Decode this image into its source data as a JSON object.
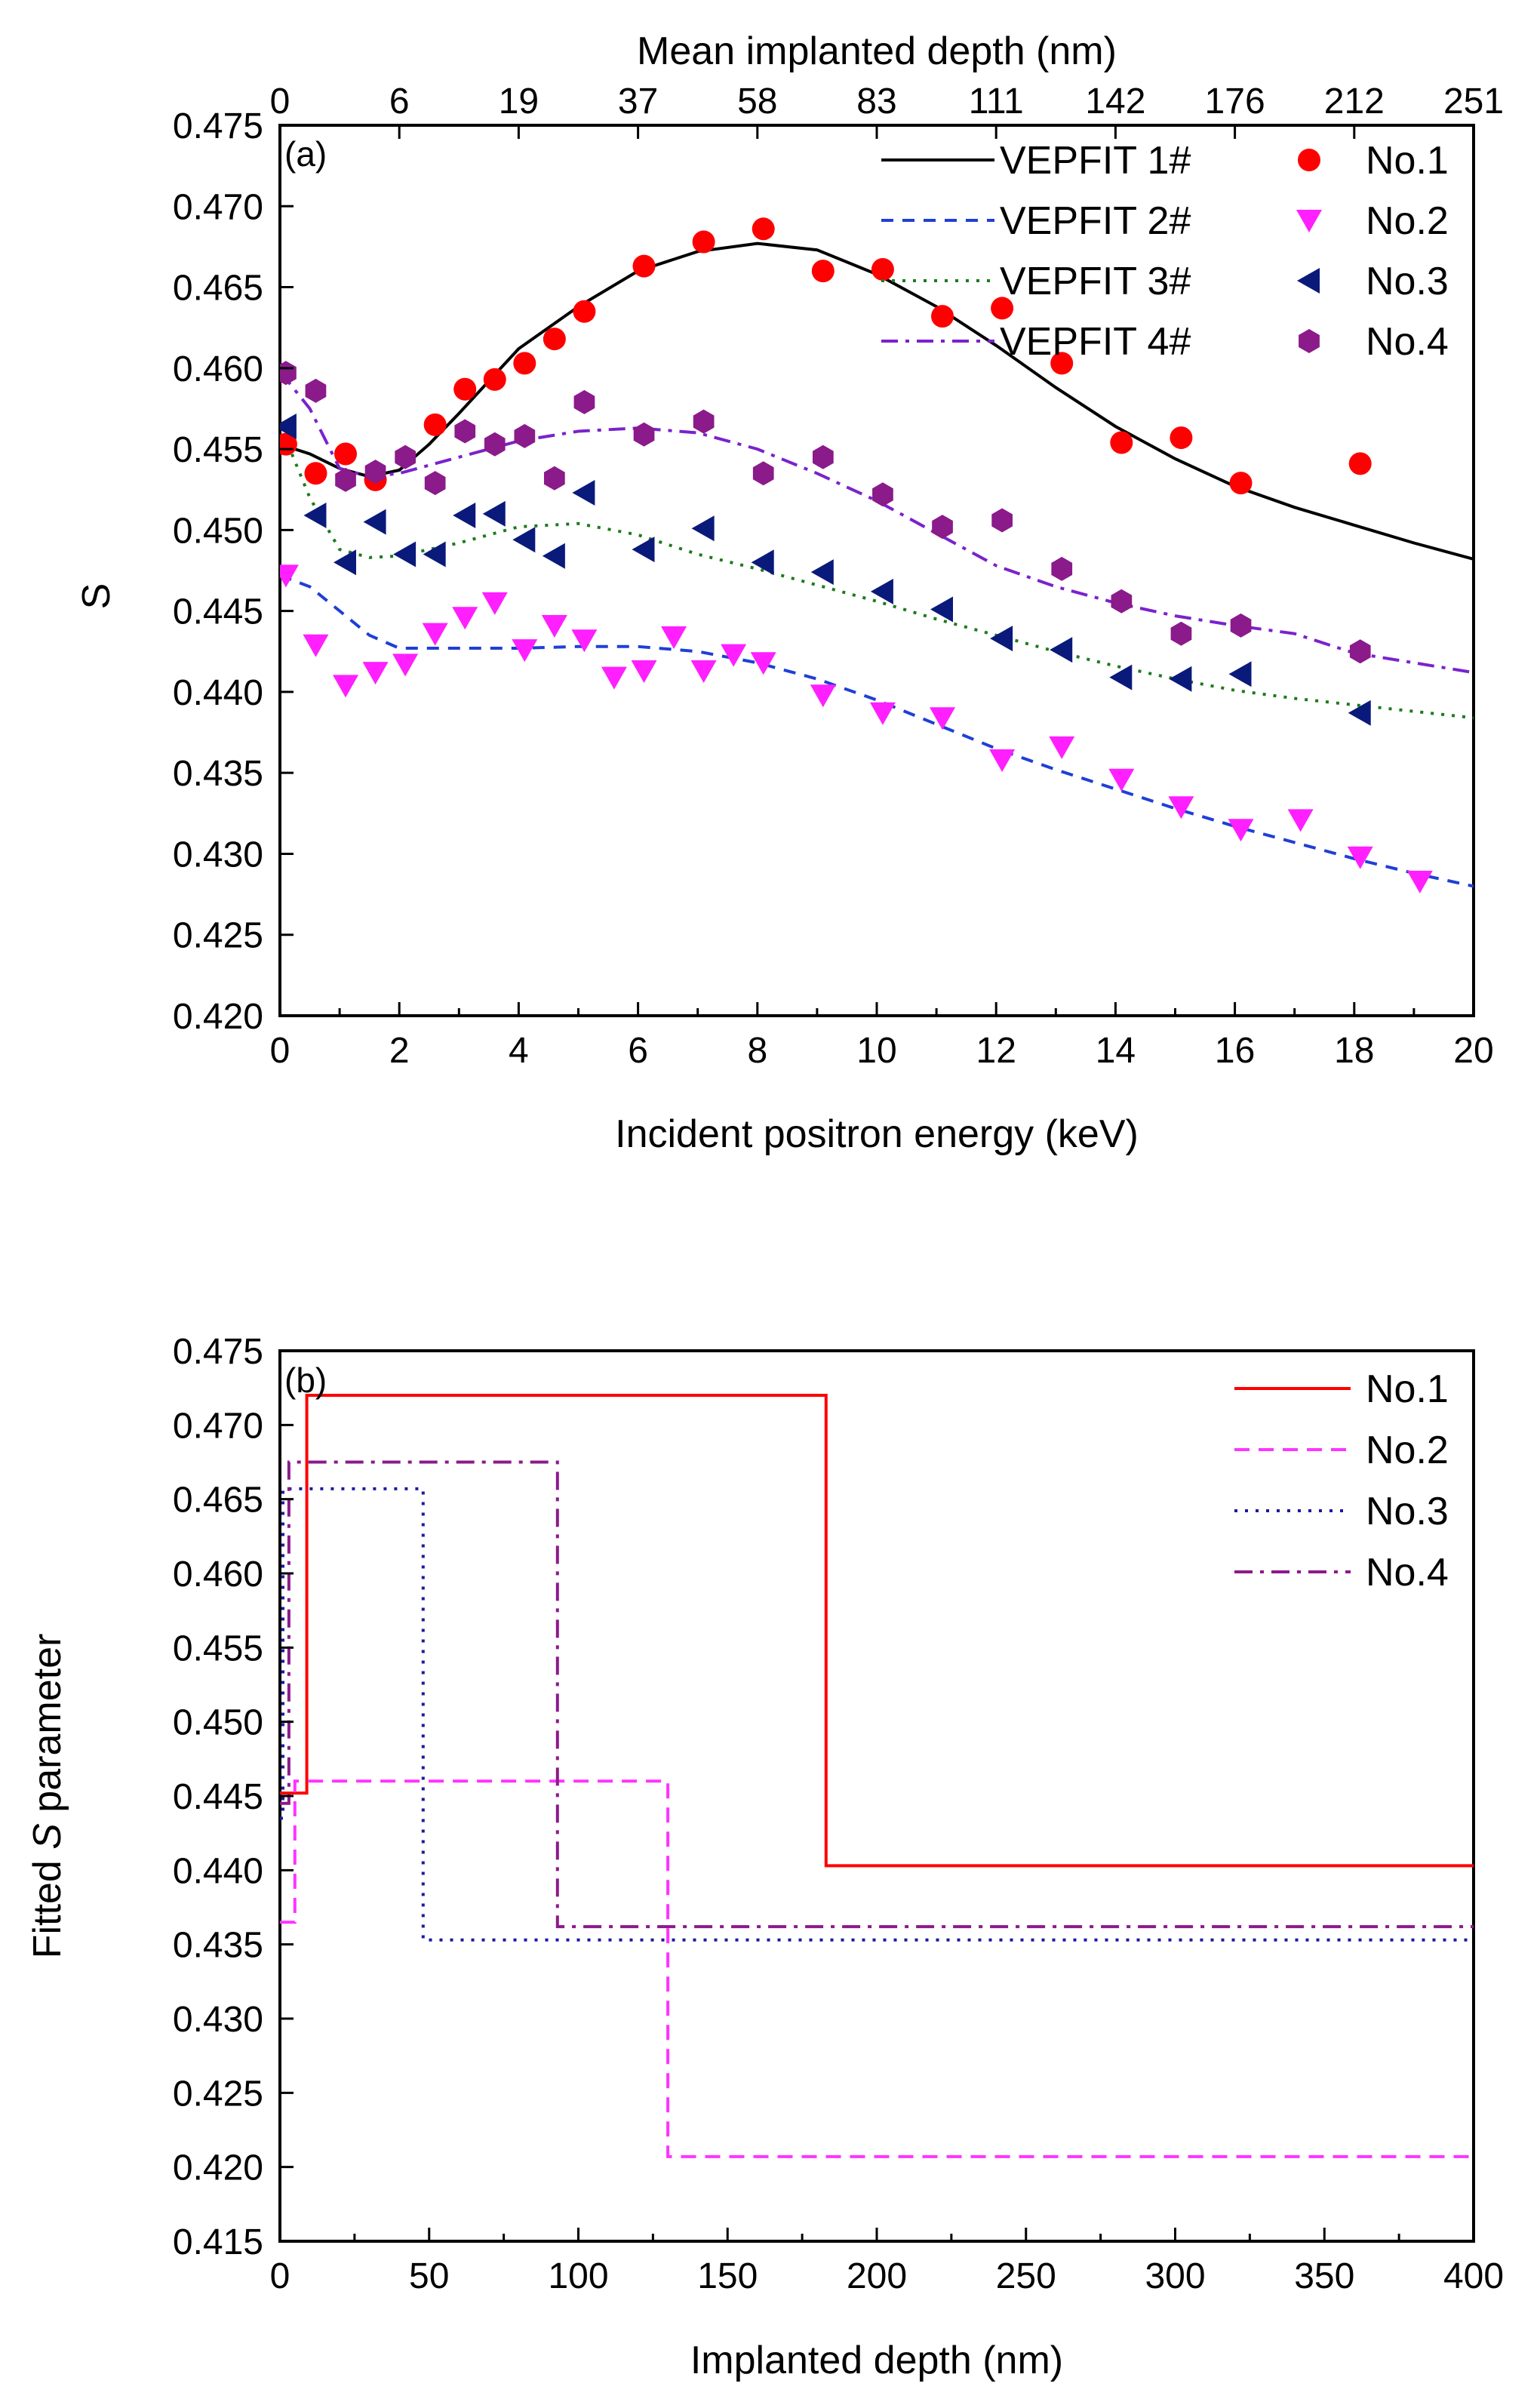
{
  "chart_data": [
    {
      "id": "a",
      "type": "scatter",
      "panel_label": "(a)",
      "xlabel": "Incident  positron energy (keV)",
      "ylabel": "S",
      "top_xlabel": "Mean implanted depth (nm)",
      "xlim": [
        0,
        20
      ],
      "ylim": [
        0.42,
        0.475
      ],
      "xticks": [
        "0",
        "2",
        "4",
        "6",
        "8",
        "10",
        "12",
        "14",
        "16",
        "18",
        "20"
      ],
      "yticks": [
        "0.420",
        "0.425",
        "0.430",
        "0.435",
        "0.440",
        "0.445",
        "0.450",
        "0.455",
        "0.460",
        "0.465",
        "0.470",
        "0.475"
      ],
      "top_ticks": [
        {
          "energy": 0,
          "label": "0"
        },
        {
          "energy": 2,
          "label": "6"
        },
        {
          "energy": 4,
          "label": "19"
        },
        {
          "energy": 6,
          "label": "37"
        },
        {
          "energy": 8,
          "label": "58"
        },
        {
          "energy": 10,
          "label": "83"
        },
        {
          "energy": 12,
          "label": "111"
        },
        {
          "energy": 14,
          "label": "142"
        },
        {
          "energy": 16,
          "label": "176"
        },
        {
          "energy": 18,
          "label": "212"
        },
        {
          "energy": 20,
          "label": "251"
        }
      ],
      "lines": [
        {
          "name": "VEPFIT 1#",
          "color": "#000000",
          "dash": "",
          "x": [
            0,
            0.5,
            1,
            1.5,
            2,
            2.5,
            3,
            3.5,
            4,
            5,
            6,
            7,
            8,
            9,
            10,
            11,
            12,
            13,
            14,
            15,
            16,
            17,
            18,
            19,
            20
          ],
          "y": [
            0.4553,
            0.4547,
            0.4538,
            0.4533,
            0.4537,
            0.4553,
            0.4572,
            0.4592,
            0.4612,
            0.4638,
            0.466,
            0.4672,
            0.4677,
            0.4673,
            0.4658,
            0.4638,
            0.4614,
            0.4588,
            0.4564,
            0.4544,
            0.4527,
            0.4514,
            0.4503,
            0.4492,
            0.4482
          ]
        },
        {
          "name": "VEPFIT 2#",
          "color": "#1f3fd6",
          "dash": "16,12",
          "x": [
            0,
            0.5,
            1,
            1.5,
            2,
            3,
            4,
            5,
            6,
            7,
            8,
            9,
            10,
            11,
            12,
            13,
            14,
            15,
            16,
            17,
            18,
            19,
            20
          ],
          "y": [
            0.4472,
            0.4465,
            0.445,
            0.4435,
            0.4427,
            0.4427,
            0.4427,
            0.4428,
            0.4428,
            0.4425,
            0.4418,
            0.4408,
            0.4395,
            0.438,
            0.4365,
            0.4352,
            0.434,
            0.4328,
            0.4317,
            0.4307,
            0.4297,
            0.4288,
            0.428
          ]
        },
        {
          "name": "VEPFIT 3#",
          "color": "#1e7a1e",
          "dash": "4,10",
          "x": [
            0,
            0.5,
            1,
            1.5,
            2,
            3,
            4,
            5,
            6,
            7,
            8,
            9,
            10,
            11,
            12,
            13,
            14,
            15,
            16,
            17,
            18,
            19,
            20
          ],
          "y": [
            0.4565,
            0.452,
            0.4488,
            0.4483,
            0.4484,
            0.4492,
            0.4502,
            0.4504,
            0.4497,
            0.4485,
            0.4476,
            0.4466,
            0.4456,
            0.4445,
            0.4435,
            0.4425,
            0.4416,
            0.4408,
            0.4401,
            0.4396,
            0.4392,
            0.4388,
            0.4384
          ]
        },
        {
          "name": "VEPFIT 4#",
          "color": "#7a22cc",
          "dash": "22,10,5,10",
          "x": [
            0,
            0.5,
            1,
            1.5,
            2,
            3,
            4,
            5,
            6,
            7,
            8,
            9,
            10,
            11,
            12,
            13,
            14,
            15,
            16,
            17,
            18,
            19,
            20
          ],
          "y": [
            0.4598,
            0.4575,
            0.4538,
            0.4533,
            0.4535,
            0.4545,
            0.4555,
            0.4561,
            0.4563,
            0.456,
            0.455,
            0.4535,
            0.4518,
            0.4498,
            0.4478,
            0.4465,
            0.4455,
            0.4447,
            0.4441,
            0.4436,
            0.4424,
            0.4418,
            0.4412
          ]
        }
      ],
      "series": [
        {
          "name": "No.1",
          "marker": "circle",
          "color": "#ff0000",
          "x": [
            0.1,
            0.6,
            1.1,
            1.6,
            2.6,
            3.1,
            3.6,
            4.1,
            4.6,
            5.1,
            6.1,
            7.1,
            8.1,
            9.1,
            10.1,
            11.1,
            12.1,
            13.1,
            14.1,
            15.1,
            16.1,
            18.1
          ],
          "y": [
            0.4553,
            0.4535,
            0.4547,
            0.4531,
            0.4565,
            0.4587,
            0.4593,
            0.4603,
            0.4618,
            0.4635,
            0.4663,
            0.4678,
            0.4686,
            0.466,
            0.4661,
            0.4632,
            0.4637,
            0.4603,
            0.4554,
            0.4557,
            0.4529,
            0.4541
          ]
        },
        {
          "name": "No.2",
          "marker": "triangle-down",
          "color": "#ff1fff",
          "x": [
            0.1,
            0.6,
            1.1,
            1.6,
            2.1,
            2.6,
            3.1,
            3.6,
            4.1,
            4.6,
            5.1,
            5.6,
            6.1,
            6.6,
            7.1,
            7.6,
            8.1,
            9.1,
            10.1,
            11.1,
            12.1,
            13.1,
            14.1,
            15.1,
            16.1,
            17.1,
            18.1,
            19.1
          ],
          "y": [
            0.4472,
            0.4429,
            0.4404,
            0.4412,
            0.4417,
            0.4436,
            0.4446,
            0.4455,
            0.4426,
            0.4441,
            0.4432,
            0.4409,
            0.4413,
            0.4434,
            0.4413,
            0.4423,
            0.4418,
            0.4398,
            0.4387,
            0.4384,
            0.4358,
            0.4366,
            0.4346,
            0.4329,
            0.4315,
            0.4321,
            0.4298,
            0.4283
          ]
        },
        {
          "name": "No.3",
          "marker": "triangle-left",
          "color": "#0a1a7a",
          "x": [
            0.1,
            0.6,
            1.1,
            1.6,
            2.1,
            2.6,
            3.1,
            3.6,
            4.1,
            4.6,
            5.1,
            6.1,
            7.1,
            8.1,
            9.1,
            10.1,
            11.1,
            12.1,
            13.1,
            14.1,
            15.1,
            16.1,
            18.1
          ],
          "y": [
            0.4564,
            0.4509,
            0.448,
            0.4505,
            0.4485,
            0.4485,
            0.4509,
            0.451,
            0.4494,
            0.4484,
            0.4523,
            0.4488,
            0.4501,
            0.448,
            0.4474,
            0.4462,
            0.4451,
            0.4433,
            0.4426,
            0.4409,
            0.4408,
            0.4411,
            0.4387
          ]
        },
        {
          "name": "No.4",
          "marker": "hexagon",
          "color": "#8b1a8b",
          "x": [
            0.1,
            0.6,
            1.1,
            1.6,
            2.1,
            2.6,
            3.1,
            3.6,
            4.1,
            4.6,
            5.1,
            6.1,
            7.1,
            8.1,
            9.1,
            10.1,
            11.1,
            12.1,
            13.1,
            14.1,
            15.1,
            16.1,
            18.1
          ],
          "y": [
            0.4597,
            0.4586,
            0.4531,
            0.4536,
            0.4545,
            0.4529,
            0.4561,
            0.4553,
            0.4558,
            0.4532,
            0.4579,
            0.4559,
            0.4567,
            0.4535,
            0.4545,
            0.4522,
            0.4502,
            0.4506,
            0.4476,
            0.4456,
            0.4436,
            0.4441,
            0.4425
          ]
        }
      ],
      "legend": {
        "placement": "top-right",
        "entries": [
          "VEPFIT 1#",
          "No.1",
          "VEPFIT 2#",
          "No.2",
          "VEPFIT 3#",
          "No.3",
          "VEPFIT 4#",
          "No.4"
        ]
      }
    },
    {
      "id": "b",
      "type": "line",
      "panel_label": "(b)",
      "xlabel": "Implanted depth (nm)",
      "ylabel_prefix": "Fitted ",
      "ylabel_italic": "S",
      "ylabel_suffix": " parameter",
      "xlim": [
        0,
        400
      ],
      "ylim": [
        0.415,
        0.475
      ],
      "xticks": [
        "0",
        "50",
        "100",
        "150",
        "200",
        "250",
        "300",
        "350",
        "400"
      ],
      "yticks": [
        "0.415",
        "0.420",
        "0.425",
        "0.430",
        "0.435",
        "0.440",
        "0.445",
        "0.450",
        "0.455",
        "0.460",
        "0.465",
        "0.470",
        "0.475"
      ],
      "series": [
        {
          "name": "No.1",
          "color": "#ff0000",
          "dash": "",
          "x": [
            0,
            9,
            9,
            183,
            183,
            400
          ],
          "y": [
            0.4452,
            0.4452,
            0.472,
            0.472,
            0.4403,
            0.4403
          ]
        },
        {
          "name": "No.2",
          "color": "#ff33ff",
          "dash": "20,12",
          "x": [
            0,
            5,
            5,
            130,
            130,
            400
          ],
          "y": [
            0.4365,
            0.4365,
            0.446,
            0.446,
            0.4207,
            0.4207
          ]
        },
        {
          "name": "No.3",
          "color": "#1a1aa0",
          "dash": "4,10",
          "x": [
            0,
            1,
            1,
            48,
            48,
            400
          ],
          "y": [
            0.4435,
            0.4435,
            0.4657,
            0.4657,
            0.4353,
            0.4353
          ]
        },
        {
          "name": "No.4",
          "color": "#8b1a8b",
          "dash": "24,10,5,10",
          "x": [
            0,
            3,
            3,
            93,
            93,
            400
          ],
          "y": [
            0.4445,
            0.4445,
            0.4675,
            0.4675,
            0.4362,
            0.4362
          ]
        }
      ],
      "legend": {
        "placement": "top-right",
        "entries": [
          "No.1",
          "No.2",
          "No.3",
          "No.4"
        ]
      }
    }
  ]
}
